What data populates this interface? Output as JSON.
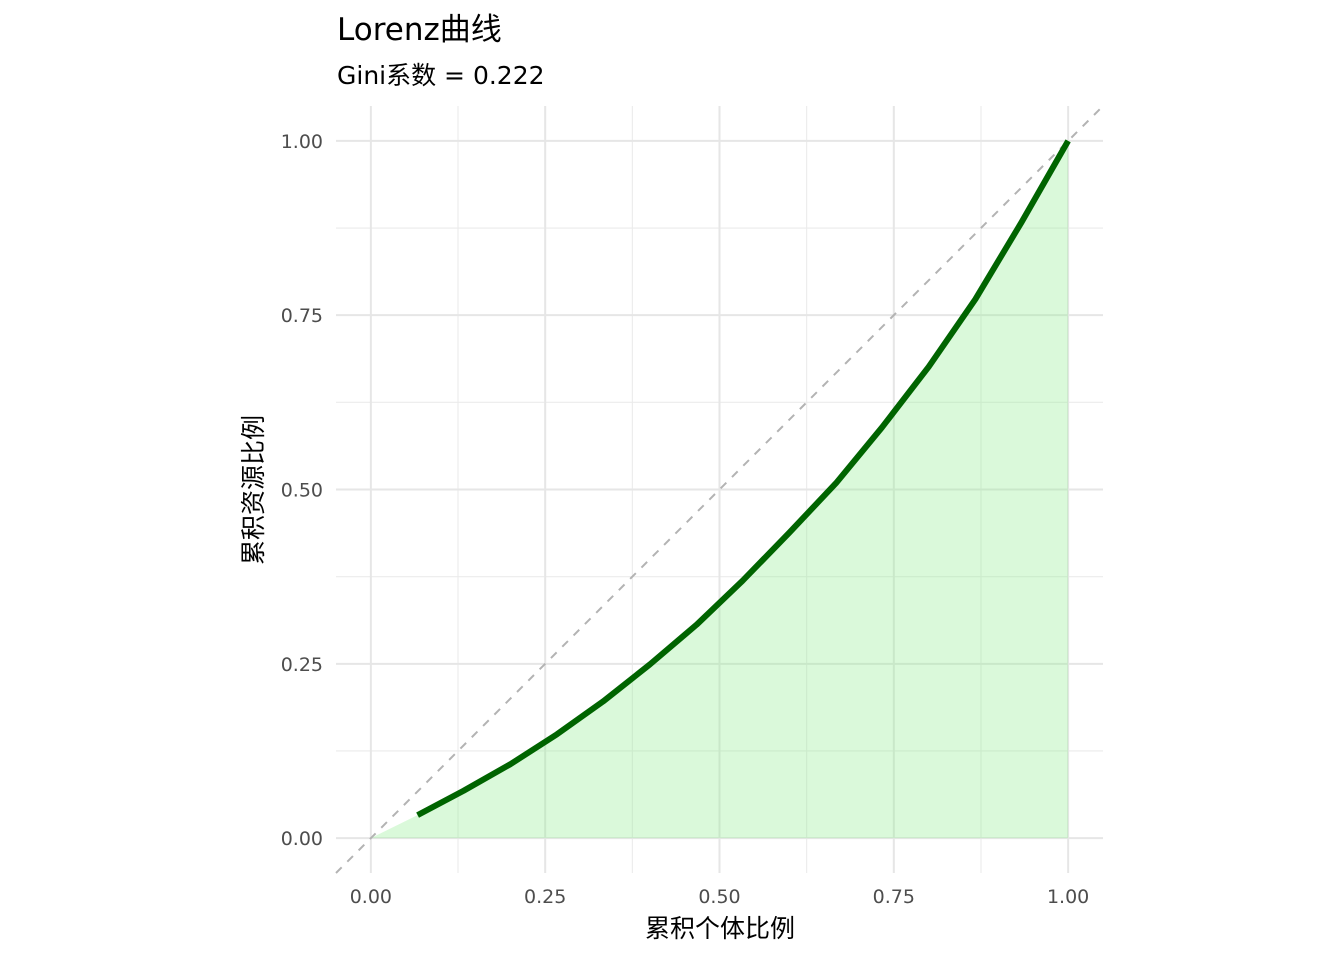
{
  "chart_data": {
    "type": "line",
    "title": "Lorenz曲线",
    "subtitle": "Gini系数 = 0.222",
    "xlabel": "累积个体比例",
    "ylabel": "累积资源比例",
    "xlim": [
      -0.05,
      1.05
    ],
    "ylim": [
      -0.05,
      1.05
    ],
    "x_ticks": [
      0,
      0.25,
      0.5,
      0.75,
      1
    ],
    "x_tick_labels": [
      "0.00",
      "0.25",
      "0.50",
      "0.75",
      "1.00"
    ],
    "y_ticks": [
      0,
      0.25,
      0.5,
      0.75,
      1
    ],
    "y_tick_labels": [
      "0.00",
      "0.25",
      "0.50",
      "0.75",
      "1.00"
    ],
    "grid": true,
    "series": [
      {
        "x": [
          0.067,
          0.133,
          0.2,
          0.267,
          0.333,
          0.4,
          0.467,
          0.533,
          0.6,
          0.667,
          0.733,
          0.8,
          0.867,
          0.933,
          1.0
        ],
        "y": [
          0.033,
          0.068,
          0.106,
          0.149,
          0.196,
          0.249,
          0.306,
          0.369,
          0.438,
          0.509,
          0.589,
          0.676,
          0.773,
          0.883,
          1.0
        ],
        "color": "#006400",
        "fill_color": "#90ee90"
      }
    ],
    "reference_line": {
      "x": [
        0,
        1
      ],
      "y": [
        0,
        1
      ],
      "color": "#b3b3b3",
      "style": "dashed"
    }
  }
}
